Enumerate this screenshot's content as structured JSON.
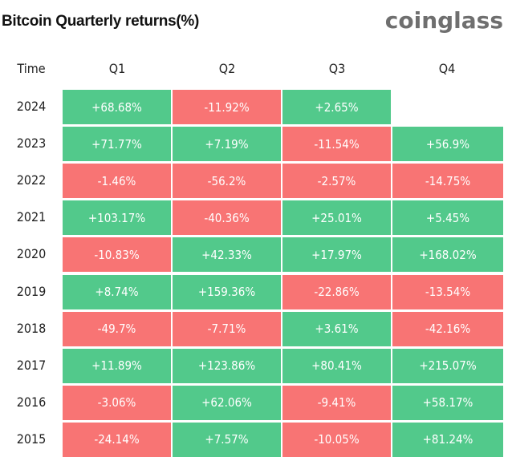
{
  "title": "Bitcoin Quarterly returns(%)",
  "logo": "coinglass",
  "colors": {
    "positive": "#52c98b",
    "negative": "#f87474"
  },
  "chart_data": {
    "type": "table",
    "title": "Bitcoin Quarterly returns(%)",
    "columns": [
      "Time",
      "Q1",
      "Q2",
      "Q3",
      "Q4"
    ],
    "rows": [
      {
        "year": "2024",
        "values": [
          "+68.68%",
          "-11.92%",
          "+2.65%",
          ""
        ]
      },
      {
        "year": "2023",
        "values": [
          "+71.77%",
          "+7.19%",
          "-11.54%",
          "+56.9%"
        ]
      },
      {
        "year": "2022",
        "values": [
          "-1.46%",
          "-56.2%",
          "-2.57%",
          "-14.75%"
        ]
      },
      {
        "year": "2021",
        "values": [
          "+103.17%",
          "-40.36%",
          "+25.01%",
          "+5.45%"
        ]
      },
      {
        "year": "2020",
        "values": [
          "-10.83%",
          "+42.33%",
          "+17.97%",
          "+168.02%"
        ]
      },
      {
        "year": "2019",
        "values": [
          "+8.74%",
          "+159.36%",
          "-22.86%",
          "-13.54%"
        ]
      },
      {
        "year": "2018",
        "values": [
          "-49.7%",
          "-7.71%",
          "+3.61%",
          "-42.16%"
        ]
      },
      {
        "year": "2017",
        "values": [
          "+11.89%",
          "+123.86%",
          "+80.41%",
          "+215.07%"
        ]
      },
      {
        "year": "2016",
        "values": [
          "-3.06%",
          "+62.06%",
          "-9.41%",
          "+58.17%"
        ]
      },
      {
        "year": "2015",
        "values": [
          "-24.14%",
          "+7.57%",
          "-10.05%",
          "+81.24%"
        ]
      }
    ]
  }
}
